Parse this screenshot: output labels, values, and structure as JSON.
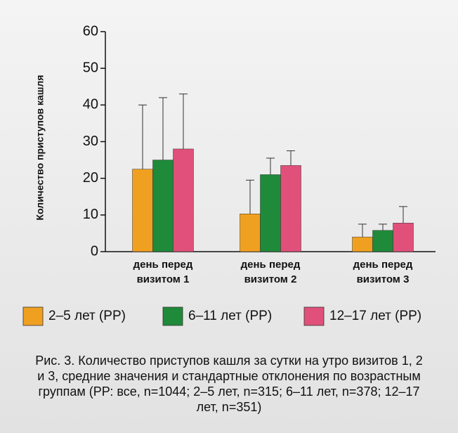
{
  "chart_data": {
    "type": "bar",
    "y_label": "Количество приступов кашля",
    "categories": [
      "день перед визитом 1",
      "день перед визитом 2",
      "день перед визитом 3"
    ],
    "series": [
      {
        "name": "2–5 лет (РР)",
        "color": "#f0a020",
        "values": [
          22.5,
          10.3,
          4
        ],
        "errors": [
          17.5,
          9.2,
          3.5
        ]
      },
      {
        "name": "6–11 лет (РР)",
        "color": "#1e8a3a",
        "values": [
          25,
          21,
          5.8
        ],
        "errors": [
          17,
          4.5,
          1.7
        ]
      },
      {
        "name": "12–17 лет (РР)",
        "color": "#e0507a",
        "values": [
          28,
          23.5,
          7.8
        ],
        "errors": [
          15,
          4,
          4.5
        ]
      }
    ],
    "ylim": [
      0,
      60
    ],
    "yticks": [
      0,
      10,
      20,
      30,
      40,
      50,
      60
    ],
    "caption": "Рис. 3. Количество приступов кашля за сутки на утро визитов 1, 2 и 3, средние значения и стандартные отклонения по возрастным группам (РР: все, n=1044; 2–5 лет, n=315; 6–11 лет, n=378; 12–17 лет, n=351)"
  }
}
